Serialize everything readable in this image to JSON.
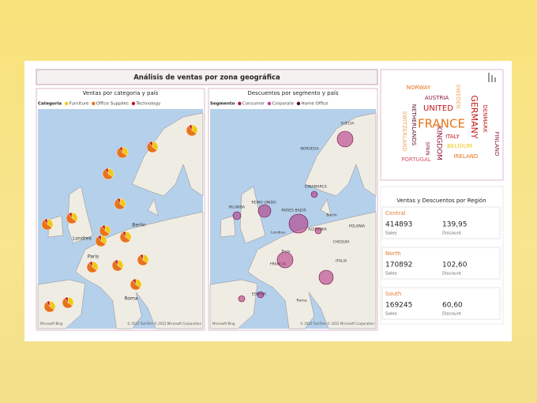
{
  "header": {
    "title": "Análisis de ventas por zona geográfica"
  },
  "maps": [
    {
      "title": "Ventas por categoria y país",
      "legend_title": "Categoria",
      "legend": [
        "Furniture",
        "Office Supplies",
        "Technology"
      ],
      "labels": [
        "Berlin",
        "Londres",
        "Paris",
        "Roma"
      ],
      "copyright": "© 2022 TomTom © 2022 Microsoft Corporation",
      "logo": "Microsoft Bing"
    },
    {
      "title": "Descuentos por segmento y país",
      "legend_title": "Segmento",
      "legend": [
        "Consumer",
        "Corporate",
        "Home Office"
      ],
      "labels": [
        "SUECIA",
        "NORUEGA",
        "DINAMARCA",
        "REINO UNIDO",
        "IRLANDA",
        "PAÍSES BAJOS",
        "ALEMANIA",
        "POLONIA",
        "CHEQUIA",
        "Londres",
        "Berlin",
        "Paris",
        "FRANCIA",
        "ITALIA",
        "ESPAÑA",
        "Roma"
      ],
      "copyright": "© 2022 TomTom © 2022 Microsoft Corporation",
      "logo": "Microsoft Bing"
    }
  ],
  "word_cloud": [
    "NORWAY",
    "AUSTRIA",
    "SWEDEN",
    "UNITED",
    "KINGDOM",
    "FRANCE",
    "GERMANY",
    "DENMARK",
    "FINLAND",
    "NETHERLANDS",
    "SWITZERLAND",
    "ITALY",
    "BELGIUM",
    "SPAIN",
    "PORTUGAL",
    "IRELAND"
  ],
  "regions": {
    "title": "Ventas y Descuentos por Región",
    "cards": [
      {
        "name": "Central",
        "sales": "414893",
        "sales_label": "Sales",
        "discount": "139,95",
        "discount_label": "Discount"
      },
      {
        "name": "North",
        "sales": "170892",
        "sales_label": "Sales",
        "discount": "102,60",
        "discount_label": "Discount"
      },
      {
        "name": "South",
        "sales": "169245",
        "sales_label": "Sales",
        "discount": "60,60",
        "discount_label": "Discount"
      }
    ]
  }
}
